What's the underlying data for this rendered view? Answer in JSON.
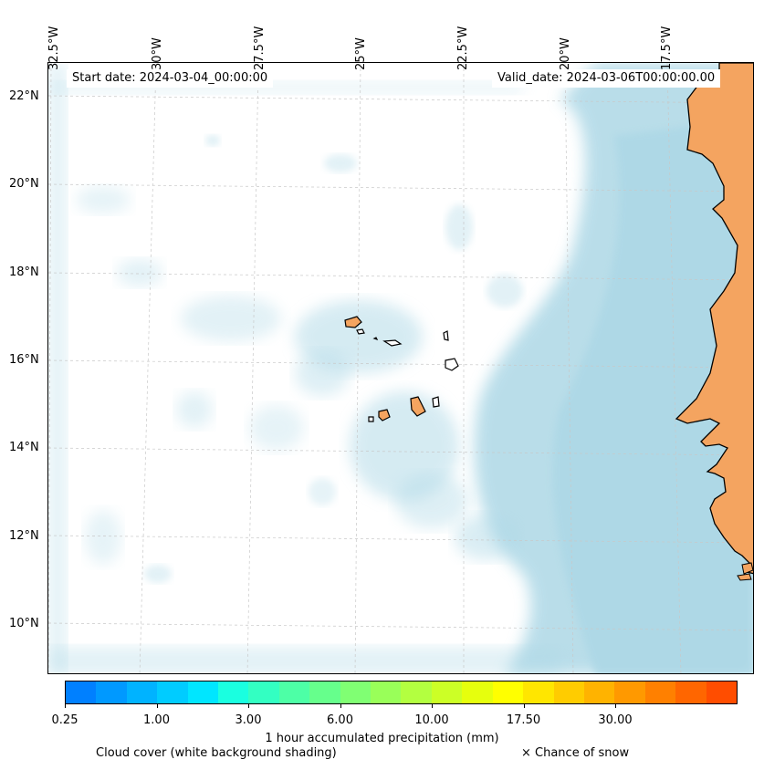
{
  "map": {
    "start_date_label": "Start date: 2024-03-04_00:00:00",
    "valid_date_label": "Valid_date: 2024-03-06T00:00:00.00",
    "lon_ticks": [
      "32.5°W",
      "30°W",
      "27.5°W",
      "25°W",
      "22.5°W",
      "20°W",
      "17.5°W"
    ],
    "lat_ticks": [
      "22°N",
      "20°N",
      "18°N",
      "16°N",
      "14°N",
      "12°N",
      "10°N"
    ],
    "colors": {
      "land": "#F4A460",
      "cloud": "#ADD8E6",
      "coastline": "#000000",
      "grid": "#c8c8c8"
    }
  },
  "colorbar": {
    "label": "1 hour accumulated precipitation (mm)",
    "tick_labels": [
      "0.25",
      "1.00",
      "3.00",
      "6.00",
      "10.00",
      "17.50",
      "30.00"
    ],
    "colors": [
      "#0080ff",
      "#0099ff",
      "#00b3ff",
      "#00ccff",
      "#00e6ff",
      "#1affe0",
      "#33ffc2",
      "#4dffa6",
      "#66ff8c",
      "#80ff73",
      "#99ff59",
      "#b3ff40",
      "#ccff26",
      "#e6ff0d",
      "#ffff00",
      "#ffe600",
      "#ffcc00",
      "#ffb300",
      "#ff9900",
      "#ff8000",
      "#ff6600",
      "#ff4d00"
    ]
  },
  "legend": {
    "cloud_cover": "Cloud cover (white background shading)",
    "snow": "× Chance of snow"
  }
}
